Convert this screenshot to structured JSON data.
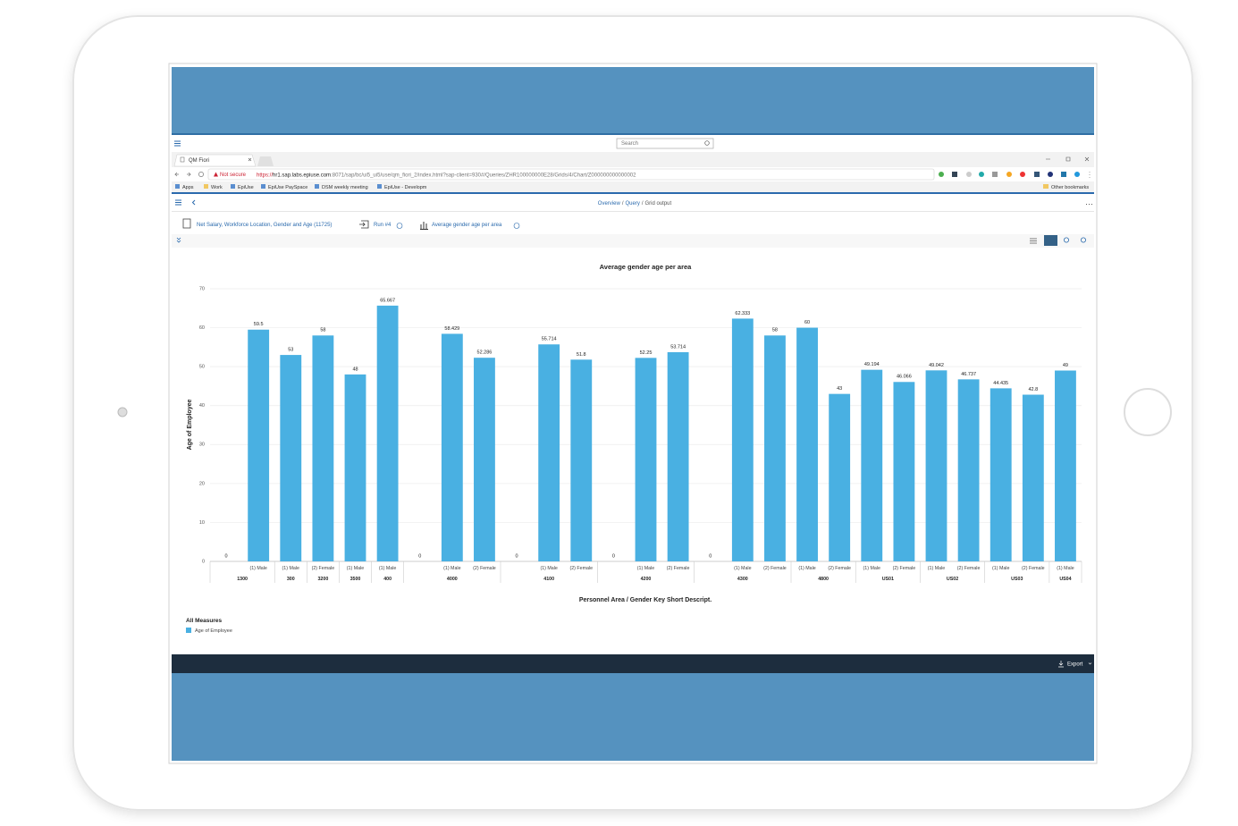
{
  "browser": {
    "tab_title": "QM Fiori",
    "security": "Not secure",
    "url_scheme": "https://",
    "url_host": "hr1.sap.labs.epiuse.com",
    "url_path": ":8071/sap/bc/ui5_ui5/use/qm_fiori_2/index.html?sap-client=930#/Queries/ZHR100000000E28/Grids/4/Chart/Z000000000000002",
    "bookmarks": [
      "Apps",
      "Work",
      "EpiUse",
      "EpiUse PaySpace",
      "DSM weekly meeting",
      "EpiUse - Developm"
    ],
    "other_bookmarks": "Other bookmarks"
  },
  "portal": {
    "search_placeholder": "Search"
  },
  "app": {
    "breadcrumb": [
      "Overview",
      "Query",
      "Grid output"
    ],
    "breadcrumb_separator": "/",
    "query": "Net Salary, Workforce Location, Gender and Age (11725)",
    "run": "Run #4",
    "view": "Average gender age per area",
    "export": "Export"
  },
  "chart_data": {
    "type": "bar",
    "title": "Average gender age per area",
    "x_label": "Personnel Area / Gender Key Short Descript.",
    "y_label": "Age of Employee",
    "legend_title": "All Measures",
    "series_name": "Age of Employee",
    "color": "#49b0e2",
    "ylim": [
      0,
      70
    ],
    "yticks": [
      0,
      10,
      20,
      30,
      40,
      50,
      60,
      70
    ],
    "grid": true,
    "groups": [
      {
        "name": "1300",
        "categories": [
          null,
          "(1) Male"
        ],
        "values": [
          0,
          59.5
        ]
      },
      {
        "name": "300",
        "categories": [
          "(1) Male"
        ],
        "values": [
          53
        ]
      },
      {
        "name": "3200",
        "categories": [
          "(2) Female"
        ],
        "values": [
          58
        ]
      },
      {
        "name": "3500",
        "categories": [
          "(1) Male"
        ],
        "values": [
          48
        ]
      },
      {
        "name": "400",
        "categories": [
          "(1) Male"
        ],
        "values": [
          65.667
        ]
      },
      {
        "name": "4000",
        "categories": [
          null,
          "(1) Male",
          "(2) Female"
        ],
        "values": [
          0,
          58.429,
          52.286
        ]
      },
      {
        "name": "4100",
        "categories": [
          null,
          "(1) Male",
          "(2) Female"
        ],
        "values": [
          0,
          55.714,
          51.8
        ]
      },
      {
        "name": "4200",
        "categories": [
          null,
          "(1) Male",
          "(2) Female"
        ],
        "values": [
          0,
          52.25,
          53.714
        ]
      },
      {
        "name": "4300",
        "categories": [
          null,
          "(1) Male",
          "(2) Female"
        ],
        "values": [
          0,
          62.333,
          58
        ]
      },
      {
        "name": "4800",
        "categories": [
          "(1) Male",
          "(2) Female"
        ],
        "values": [
          60,
          43
        ]
      },
      {
        "name": "US01",
        "categories": [
          "(1) Male",
          "(2) Female"
        ],
        "values": [
          49.194,
          46.066
        ]
      },
      {
        "name": "US02",
        "categories": [
          "(1) Male",
          "(2) Female"
        ],
        "values": [
          49.042,
          46.737
        ]
      },
      {
        "name": "US03",
        "categories": [
          "(1) Male",
          "(2) Female"
        ],
        "values": [
          44.435,
          42.8
        ]
      },
      {
        "name": "US04",
        "categories": [
          "(1) Male"
        ],
        "values": [
          49
        ]
      }
    ]
  }
}
